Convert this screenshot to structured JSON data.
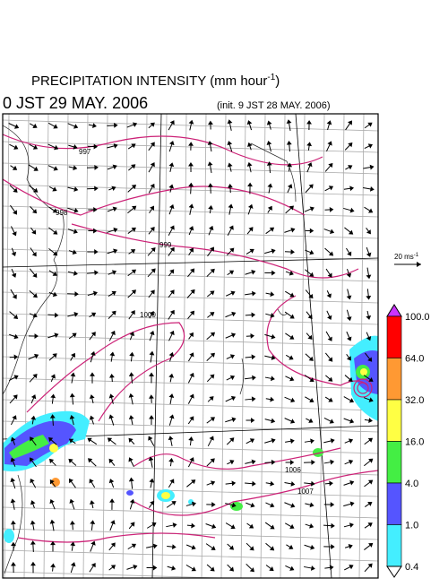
{
  "header": {
    "title_main": "PRECIPITATION INTENSITY (mm hour",
    "title_sup": "-1",
    "title_end": ")",
    "valid_time": "0 JST 29 MAY. 2006",
    "init_time": "(init. 9 JST 28 MAY. 2006)"
  },
  "vector_key": {
    "label": "20 ms",
    "sup": "-1"
  },
  "colorbar": {
    "levels": [
      {
        "label": "100.0",
        "color": "#ff0000"
      },
      {
        "label": "64.0",
        "color": "#ff9933"
      },
      {
        "label": "32.0",
        "color": "#ffff44"
      },
      {
        "label": "16.0",
        "color": "#44ee44"
      },
      {
        "label": "4.0",
        "color": "#5555ff"
      },
      {
        "label": "1.0",
        "color": "#44eeff"
      },
      {
        "label": "0.4",
        "color": "#ffffff"
      }
    ],
    "top_color": "#cc33ff"
  },
  "isobar_labels": [
    "997",
    "998",
    "999",
    "1000",
    "1006",
    "1007"
  ]
}
